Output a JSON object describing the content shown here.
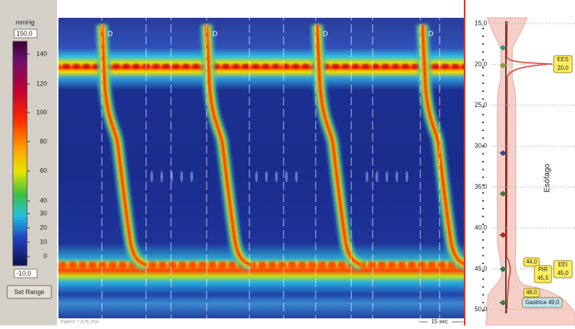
{
  "scale": {
    "unit": "mmHg",
    "max": "150,0",
    "ticks": [
      "140",
      "120",
      "100",
      "80",
      "60",
      "40",
      "30",
      "20",
      "10",
      "0"
    ],
    "min": "-10,0",
    "button": "Set Range"
  },
  "plot": {
    "markers": [
      "D",
      "D",
      "D",
      "D"
    ],
    "footer": "Patent 7,479,204",
    "time_scale": "15 sec"
  },
  "anatomy": {
    "depth_ticks": [
      "15,0",
      "20,0",
      "25,0",
      "30,0",
      "35,0",
      "40,0",
      "45,0",
      "50,0"
    ],
    "segment": "Esófago",
    "tags": [
      {
        "lines": [
          "EES",
          "20,0"
        ]
      },
      {
        "lines": [
          "44,0"
        ]
      },
      {
        "lines": [
          "EEI",
          "45,0"
        ]
      },
      {
        "lines": [
          "PIR",
          "45,5"
        ]
      },
      {
        "lines": [
          "48,0"
        ]
      },
      {
        "lines": [
          "Gastrica 49,0"
        ]
      }
    ]
  }
}
